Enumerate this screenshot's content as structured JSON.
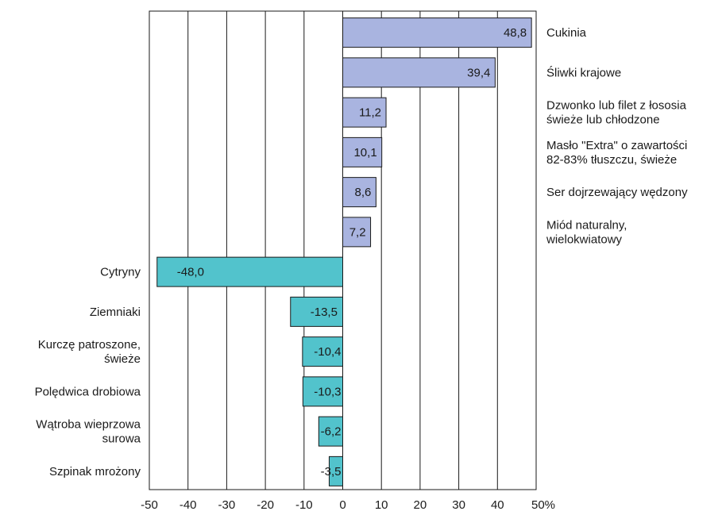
{
  "chart_data": {
    "type": "bar",
    "orientation": "horizontal",
    "categories": [
      "Cukinia",
      "Śliwki krajowe",
      "Dzwonko lub filet z łososia\nświeże lub chłodzone",
      "Masło \"Extra\" o zawartości\n82-83% tłuszczu, świeże",
      "Ser dojrzewający wędzony",
      "Miód naturalny,\nwielokwiatowy",
      "Cytryny",
      "Ziemniaki",
      "Kurczę patroszone,\nświeże",
      "Polędwica drobiowa",
      "Wątroba wieprzowa\nsurowa",
      "Szpinak mrożony"
    ],
    "values": [
      48.8,
      39.4,
      11.2,
      10.1,
      8.6,
      7.2,
      -48.0,
      -13.5,
      -10.4,
      -10.3,
      -6.2,
      -3.5
    ],
    "value_labels": [
      "48,8",
      "39,4",
      "11,2",
      "10,1",
      "8,6",
      "7,2",
      "-48,0",
      "-13,5",
      "-10,4",
      "-10,3",
      "-6,2",
      "-3,5"
    ],
    "xlim": [
      -50,
      50
    ],
    "xticks": [
      "-50",
      "-40",
      "-30",
      "-20",
      "-10",
      "0",
      "10",
      "20",
      "30",
      "40",
      "50%"
    ],
    "grid": true,
    "legend": "none",
    "colors": {
      "positive_fill": "#a9b4e0",
      "negative_fill": "#52c3cc",
      "bar_stroke": "#1a1a1a",
      "grid": "#1a1a1a"
    }
  }
}
